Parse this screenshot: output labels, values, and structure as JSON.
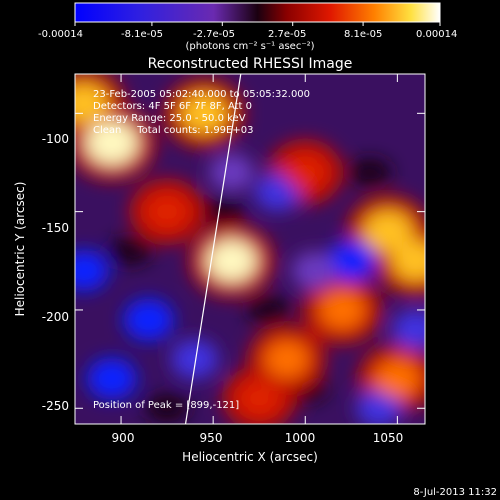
{
  "colorbar": {
    "tick_labels": [
      "-0.00014",
      "-8.1e-05",
      "-2.7e-05",
      "2.7e-05",
      "8.1e-05",
      "0.00014"
    ],
    "unit_label": "(photons cm⁻² s⁻¹ asec⁻²)"
  },
  "chart_data": {
    "type": "heatmap",
    "title": "Reconstructed RHESSI Image",
    "xlabel": "Heliocentric X (arcsec)",
    "ylabel": "Heliocentric Y (arcsec)",
    "xlim": [
      875,
      1065
    ],
    "ylim": [
      -258,
      -80
    ],
    "value_range": [
      -0.00014,
      0.00014
    ],
    "x_ticks": [
      "900",
      "950",
      "1000",
      "1050"
    ],
    "y_ticks": [
      "-100",
      "-150",
      "-200",
      "-250"
    ],
    "colormap": "red-temperature",
    "annotations": [
      "23-Feb-2005 05:02:40.000 to 05:05:32.000",
      "Detectors: 4F 5F 6F 7F 8F, Att 0",
      "Energy Range: 25.0 - 50.0 keV",
      "Clean     Total counts: 1.99E+03"
    ],
    "peak_label": "Position of Peak = [899,-121]",
    "limb_line": [
      [
        935,
        -258
      ],
      [
        965,
        -80
      ]
    ],
    "hot_spots": [
      {
        "x": 895,
        "y": -115,
        "level": 1.0
      },
      {
        "x": 880,
        "y": -95,
        "level": 0.8
      },
      {
        "x": 945,
        "y": -100,
        "level": 0.75
      },
      {
        "x": 960,
        "y": -175,
        "level": 0.9
      },
      {
        "x": 1045,
        "y": -160,
        "level": 0.85
      },
      {
        "x": 1060,
        "y": -175,
        "level": 0.8
      },
      {
        "x": 1020,
        "y": -200,
        "level": 0.7
      },
      {
        "x": 990,
        "y": -225,
        "level": 0.65
      },
      {
        "x": 1050,
        "y": -235,
        "level": 0.7
      },
      {
        "x": 925,
        "y": -150,
        "level": 0.55
      },
      {
        "x": 1000,
        "y": -130,
        "level": 0.55
      },
      {
        "x": 975,
        "y": -245,
        "level": 0.5
      }
    ],
    "cold_spots": [
      {
        "x": 915,
        "y": -205,
        "level": -0.9
      },
      {
        "x": 1025,
        "y": -175,
        "level": -0.8
      },
      {
        "x": 880,
        "y": -180,
        "level": -0.8
      },
      {
        "x": 895,
        "y": -235,
        "level": -0.85
      },
      {
        "x": 1060,
        "y": -210,
        "level": -0.7
      },
      {
        "x": 985,
        "y": -140,
        "level": -0.6
      },
      {
        "x": 940,
        "y": -225,
        "level": -0.7
      },
      {
        "x": 1005,
        "y": -180,
        "level": -0.55
      },
      {
        "x": 1040,
        "y": -250,
        "level": -0.6
      },
      {
        "x": 960,
        "y": -130,
        "level": -0.5
      }
    ]
  },
  "footer": {
    "timestamp": "8-Jul-2013 11:32"
  }
}
